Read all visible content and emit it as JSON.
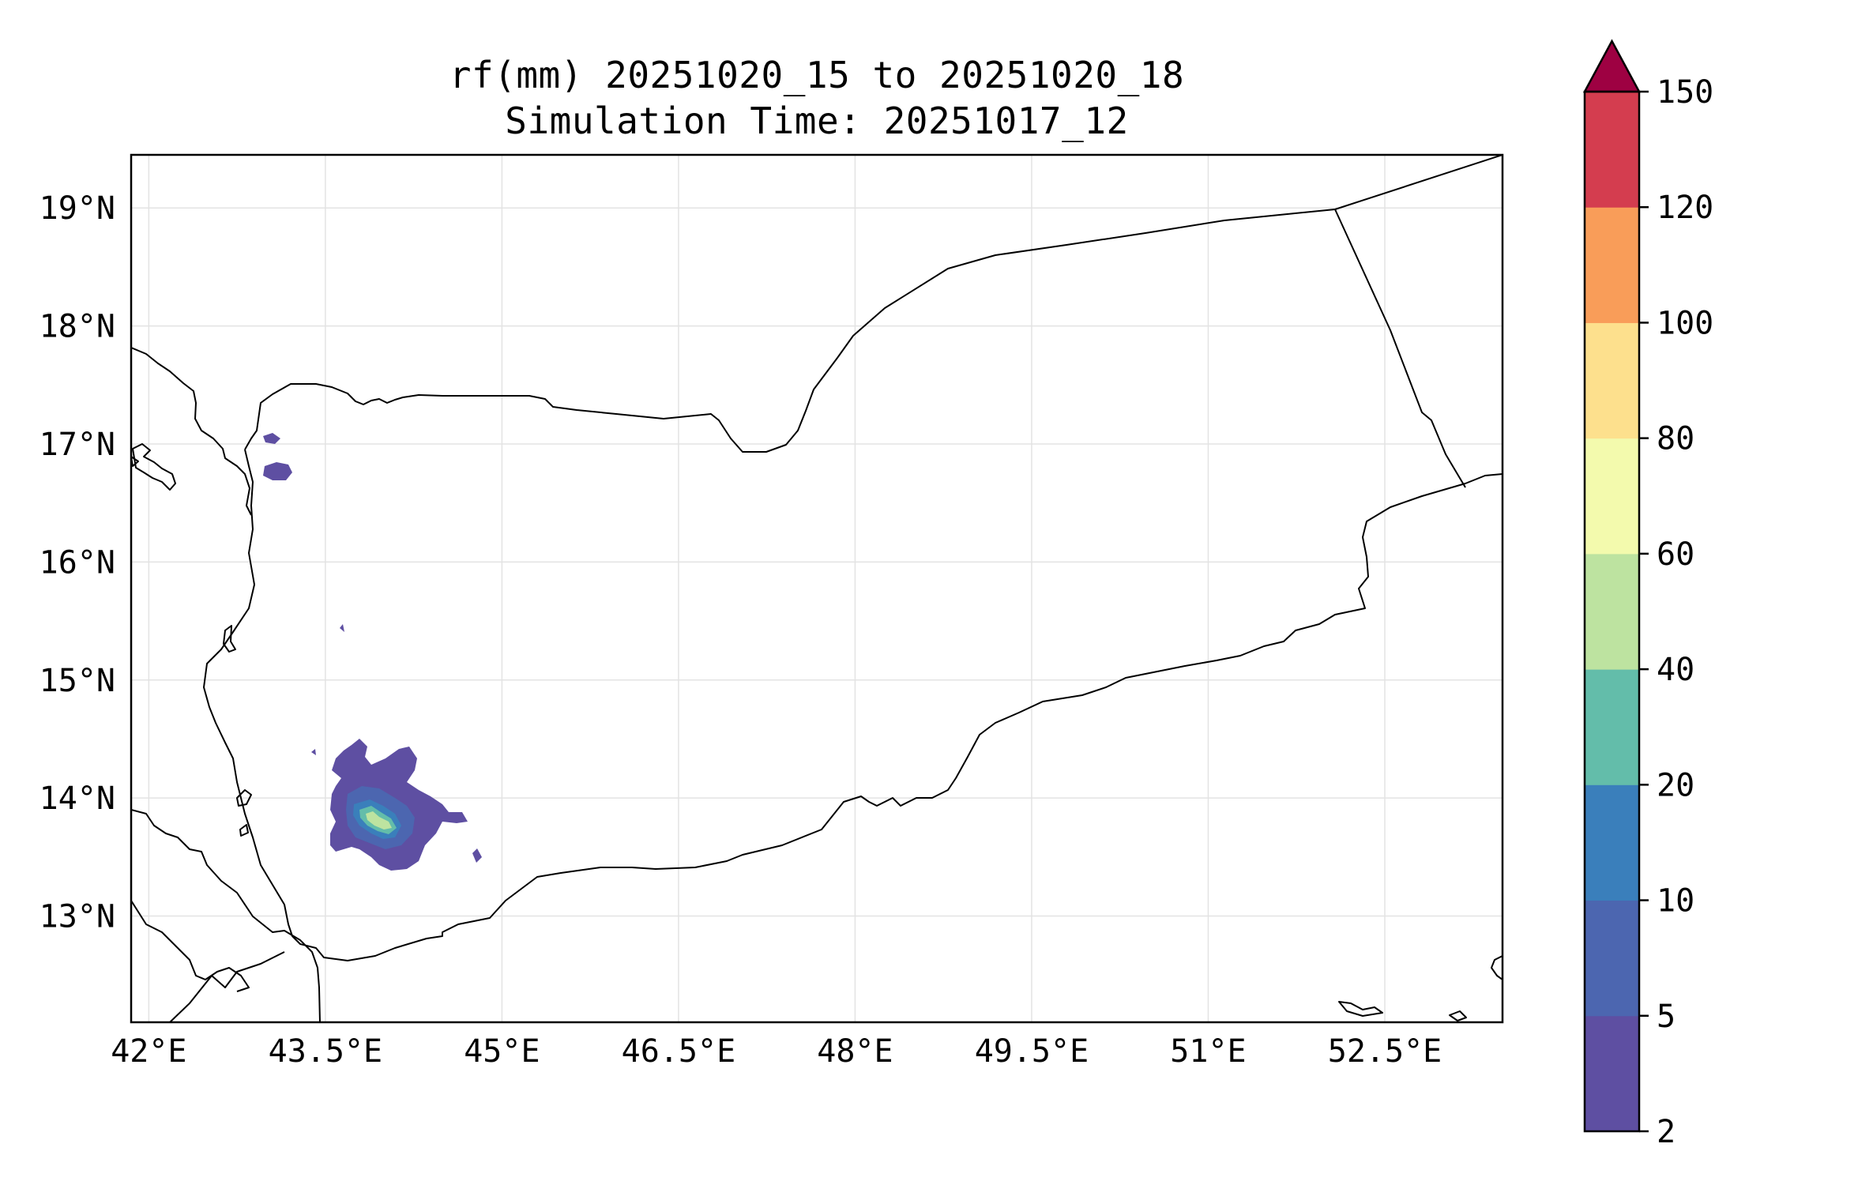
{
  "title": {
    "line1": "rf(mm) 20251020_15 to 20251020_18",
    "line2": "Simulation Time: 20251017_12"
  },
  "map": {
    "extent": {
      "lon": [
        41.85,
        53.5
      ],
      "lat": [
        12.1,
        19.45
      ]
    },
    "lat_ticks": [
      {
        "value": 19,
        "label": "19°N"
      },
      {
        "value": 18,
        "label": "18°N"
      },
      {
        "value": 17,
        "label": "17°N"
      },
      {
        "value": 16,
        "label": "16°N"
      },
      {
        "value": 15,
        "label": "15°N"
      },
      {
        "value": 14,
        "label": "14°N"
      },
      {
        "value": 13,
        "label": "13°N"
      }
    ],
    "lon_ticks": [
      {
        "value": 42,
        "label": "42°E"
      },
      {
        "value": 43.5,
        "label": "43.5°E"
      },
      {
        "value": 45,
        "label": "45°E"
      },
      {
        "value": 46.5,
        "label": "46.5°E"
      },
      {
        "value": 48,
        "label": "48°E"
      },
      {
        "value": 49.5,
        "label": "49.5°E"
      },
      {
        "value": 51,
        "label": "51°E"
      },
      {
        "value": 52.5,
        "label": "52.5°E"
      }
    ],
    "gridlines": true
  },
  "colorbar": {
    "levels": [
      "2",
      "5",
      "10",
      "20",
      "40",
      "60",
      "80",
      "100",
      "120",
      "150"
    ],
    "colors": [
      "#5e4fa2",
      "#4c66b0",
      "#3a7fbb",
      "#63bdaa",
      "#bde3a0",
      "#f3faad",
      "#fde08d",
      "#f99d59",
      "#d43d4f"
    ],
    "extend_color": "#9e0142",
    "extend": "max"
  }
}
